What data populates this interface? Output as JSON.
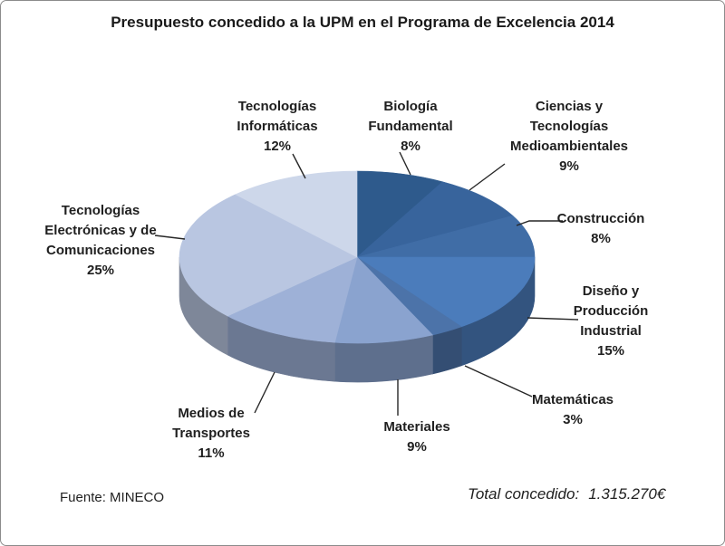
{
  "chart_data": {
    "type": "pie",
    "style": "3d",
    "title": "Presupuesto concedido a la UPM en el Programa de Excelencia 2014",
    "unit": "%",
    "start_angle_deg": 0,
    "direction": "clockwise",
    "legend": "none",
    "slices": [
      {
        "name": "Biología Fundamental",
        "value": 8,
        "color": "#2E5A8C",
        "label_lines": [
          "Biología",
          "Fundamental",
          "8%"
        ]
      },
      {
        "name": "Ciencias y Tecnologías Medioambientales",
        "value": 9,
        "color": "#38649C",
        "label_lines": [
          "Ciencias y",
          "Tecnologías",
          "Medioambientales",
          "9%"
        ]
      },
      {
        "name": "Construcción",
        "value": 8,
        "color": "#406DA6",
        "label_lines": [
          "Construcción",
          "8%"
        ]
      },
      {
        "name": "Diseño y Producción Industrial",
        "value": 15,
        "color": "#4B7CBB",
        "label_lines": [
          "Diseño y",
          "Producción",
          "Industrial",
          "15%"
        ]
      },
      {
        "name": "Matemáticas",
        "value": 3,
        "color": "#4C73A9",
        "label_lines": [
          "Matemáticas",
          "3%"
        ]
      },
      {
        "name": "Materiales",
        "value": 9,
        "color": "#8AA3CF",
        "label_lines": [
          "Materiales",
          "9%"
        ]
      },
      {
        "name": "Medios de Transportes",
        "value": 11,
        "color": "#9EB1D7",
        "label_lines": [
          "Medios de",
          "Transportes",
          "11%"
        ]
      },
      {
        "name": "Tecnologías Electrónicas y de Comunicaciones",
        "value": 25,
        "color": "#B9C6E1",
        "label_lines": [
          "Tecnologías",
          "Electrónicas y de",
          "Comunicaciones",
          "25%"
        ]
      },
      {
        "name": "Tecnologías Informáticas",
        "value": 12,
        "color": "#CDD7EA",
        "label_lines": [
          "Tecnologías",
          "Informáticas",
          "12%"
        ]
      }
    ]
  },
  "footer": {
    "source_label": "Fuente: MINECO",
    "total_label": "Total concedido:",
    "total_value": "1.315.270€"
  }
}
